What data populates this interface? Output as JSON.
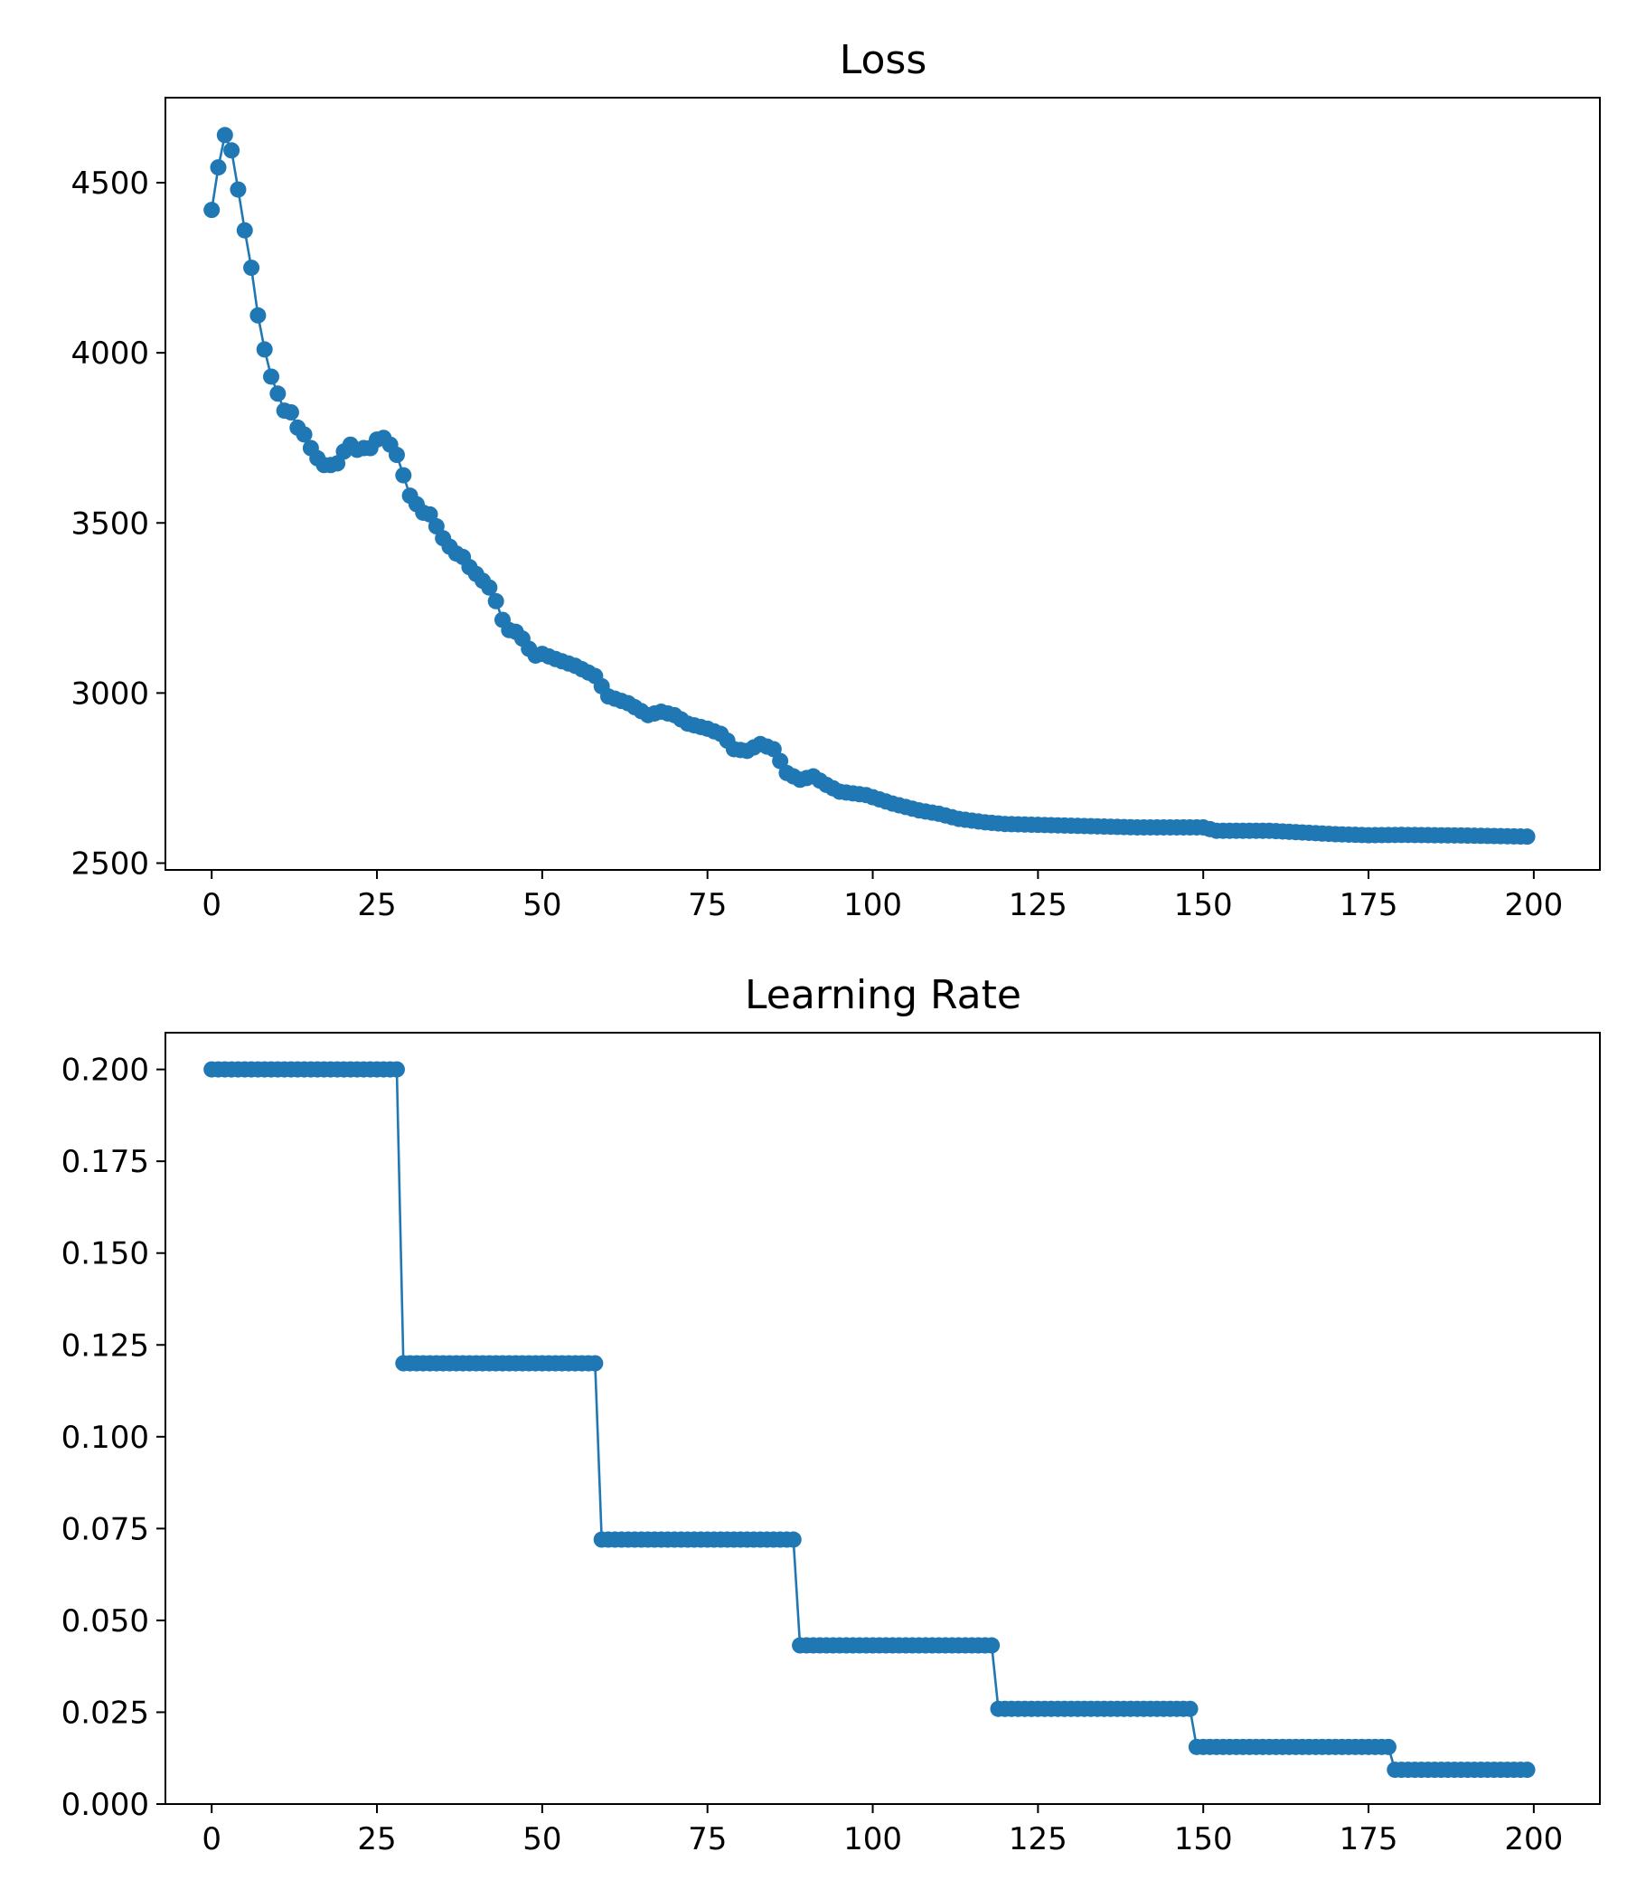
{
  "chart_data": [
    {
      "type": "line",
      "title": "Loss",
      "xlabel": "",
      "ylabel": "",
      "xlim": [
        -7,
        210
      ],
      "ylim": [
        2480,
        4750
      ],
      "xticks": [
        0,
        25,
        50,
        75,
        100,
        125,
        150,
        175,
        200
      ],
      "yticks": [
        2500,
        3000,
        3500,
        4000,
        4500
      ],
      "color": "#1f77b4",
      "markers": true,
      "grid": false,
      "keypoints": [
        [
          0,
          4420
        ],
        [
          1,
          4545
        ],
        [
          2,
          4640
        ],
        [
          3,
          4595
        ],
        [
          4,
          4480
        ],
        [
          5,
          4360
        ],
        [
          6,
          4250
        ],
        [
          7,
          4110
        ],
        [
          8,
          4010
        ],
        [
          9,
          3930
        ],
        [
          10,
          3880
        ],
        [
          11,
          3830
        ],
        [
          12,
          3825
        ],
        [
          13,
          3780
        ],
        [
          14,
          3760
        ],
        [
          15,
          3720
        ],
        [
          16,
          3690
        ],
        [
          17,
          3670
        ],
        [
          18,
          3670
        ],
        [
          19,
          3675
        ],
        [
          20,
          3710
        ],
        [
          21,
          3730
        ],
        [
          22,
          3715
        ],
        [
          23,
          3720
        ],
        [
          24,
          3720
        ],
        [
          25,
          3745
        ],
        [
          26,
          3750
        ],
        [
          27,
          3730
        ],
        [
          28,
          3700
        ],
        [
          29,
          3640
        ],
        [
          30,
          3580
        ],
        [
          31,
          3555
        ],
        [
          32,
          3530
        ],
        [
          33,
          3525
        ],
        [
          34,
          3490
        ],
        [
          35,
          3455
        ],
        [
          36,
          3430
        ],
        [
          37,
          3410
        ],
        [
          38,
          3400
        ],
        [
          39,
          3370
        ],
        [
          40,
          3350
        ],
        [
          41,
          3330
        ],
        [
          42,
          3310
        ],
        [
          43,
          3270
        ],
        [
          44,
          3215
        ],
        [
          45,
          3185
        ],
        [
          46,
          3180
        ],
        [
          47,
          3160
        ],
        [
          48,
          3130
        ],
        [
          49,
          3110
        ],
        [
          50,
          3115
        ],
        [
          52,
          3100
        ],
        [
          55,
          3080
        ],
        [
          58,
          3050
        ],
        [
          60,
          2990
        ],
        [
          63,
          2970
        ],
        [
          66,
          2935
        ],
        [
          68,
          2945
        ],
        [
          70,
          2935
        ],
        [
          72,
          2910
        ],
        [
          75,
          2895
        ],
        [
          77,
          2880
        ],
        [
          78,
          2860
        ],
        [
          79,
          2835
        ],
        [
          81,
          2830
        ],
        [
          83,
          2850
        ],
        [
          85,
          2835
        ],
        [
          86,
          2800
        ],
        [
          87,
          2765
        ],
        [
          89,
          2745
        ],
        [
          91,
          2755
        ],
        [
          93,
          2730
        ],
        [
          95,
          2710
        ],
        [
          99,
          2700
        ],
        [
          103,
          2675
        ],
        [
          107,
          2655
        ],
        [
          110,
          2645
        ],
        [
          113,
          2630
        ],
        [
          117,
          2620
        ],
        [
          120,
          2615
        ],
        [
          130,
          2610
        ],
        [
          140,
          2605
        ],
        [
          150,
          2605
        ],
        [
          152,
          2595
        ],
        [
          156,
          2595
        ],
        [
          160,
          2595
        ],
        [
          165,
          2590
        ],
        [
          170,
          2585
        ],
        [
          175,
          2582
        ],
        [
          180,
          2583
        ],
        [
          185,
          2582
        ],
        [
          190,
          2581
        ],
        [
          199,
          2578
        ]
      ]
    },
    {
      "type": "line",
      "title": "Learning Rate",
      "xlabel": "",
      "ylabel": "",
      "xlim": [
        -7,
        210
      ],
      "ylim": [
        0,
        0.21
      ],
      "xticks": [
        0,
        25,
        50,
        75,
        100,
        125,
        150,
        175,
        200
      ],
      "yticks": [
        "0.000",
        "0.025",
        "0.050",
        "0.075",
        "0.100",
        "0.125",
        "0.150",
        "0.175",
        "0.200"
      ],
      "color": "#1f77b4",
      "markers": true,
      "grid": false,
      "steps": [
        {
          "start": 0,
          "end": 29,
          "value": 0.2
        },
        {
          "start": 29,
          "end": 59,
          "value": 0.12
        },
        {
          "start": 59,
          "end": 89,
          "value": 0.072
        },
        {
          "start": 89,
          "end": 119,
          "value": 0.0432
        },
        {
          "start": 119,
          "end": 149,
          "value": 0.02592
        },
        {
          "start": 149,
          "end": 179,
          "value": 0.015552
        },
        {
          "start": 179,
          "end": 200,
          "value": 0.0093312
        }
      ]
    }
  ]
}
